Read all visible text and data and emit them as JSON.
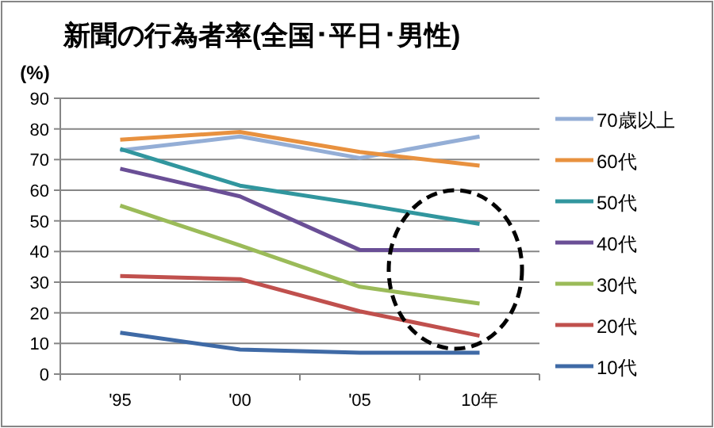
{
  "chart_data": {
    "type": "line",
    "title": "新聞の行為者率(全国･平日･男性)",
    "ylabel": "(%)",
    "categories": [
      "'95",
      "'00",
      "'05",
      "10年"
    ],
    "ylim": [
      0,
      90
    ],
    "yticks": [
      0,
      10,
      20,
      30,
      40,
      50,
      60,
      70,
      80,
      90
    ],
    "grid": "y",
    "legend": "right",
    "marker": "none",
    "series": [
      {
        "name": "70歳以上",
        "color": "#94aed6",
        "values": [
          73,
          77.5,
          70.5,
          77.5
        ]
      },
      {
        "name": "60代",
        "color": "#e8913f",
        "values": [
          76.5,
          79,
          72.5,
          68
        ]
      },
      {
        "name": "50代",
        "color": "#31969e",
        "values": [
          73.5,
          61.5,
          55.5,
          49
        ]
      },
      {
        "name": "40代",
        "color": "#6a4f96",
        "values": [
          67,
          58,
          40.5,
          40.5
        ]
      },
      {
        "name": "30代",
        "color": "#9bbb59",
        "values": [
          55,
          42,
          28.5,
          23
        ]
      },
      {
        "name": "20代",
        "color": "#c0504d",
        "values": [
          32,
          31,
          20.5,
          12.5
        ]
      },
      {
        "name": "10代",
        "color": "#3f6aa6",
        "values": [
          13.5,
          8,
          7,
          7
        ]
      }
    ]
  }
}
